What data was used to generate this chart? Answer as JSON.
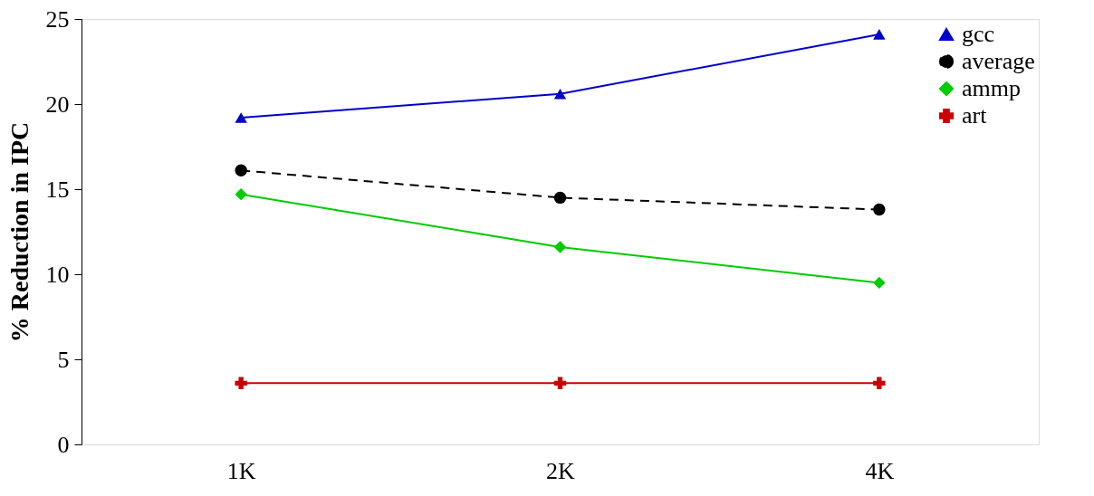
{
  "chart_data": {
    "type": "line",
    "ylabel": "% Reduction in IPC",
    "categories": [
      "1K",
      "2K",
      "4K"
    ],
    "series": [
      {
        "name": "gcc",
        "color": "#0000cc",
        "values": [
          19.2,
          20.6,
          24.1
        ],
        "marker": "triangle",
        "line_style": "solid"
      },
      {
        "name": "average",
        "color": "#000000",
        "values": [
          16.1,
          14.5,
          13.8
        ],
        "marker": "circle",
        "line_style": "dashed"
      },
      {
        "name": "ammp",
        "color": "#00cc00",
        "values": [
          14.7,
          11.6,
          9.5
        ],
        "marker": "diamond",
        "line_style": "solid"
      },
      {
        "name": "art",
        "color": "#cc0000",
        "values": [
          3.6,
          3.6,
          3.6
        ],
        "marker": "cross",
        "line_style": "solid"
      }
    ],
    "ylim": [
      0,
      25
    ],
    "yticks": [
      0,
      5,
      10,
      15,
      20,
      25
    ],
    "grid": false,
    "legend": "top right"
  }
}
